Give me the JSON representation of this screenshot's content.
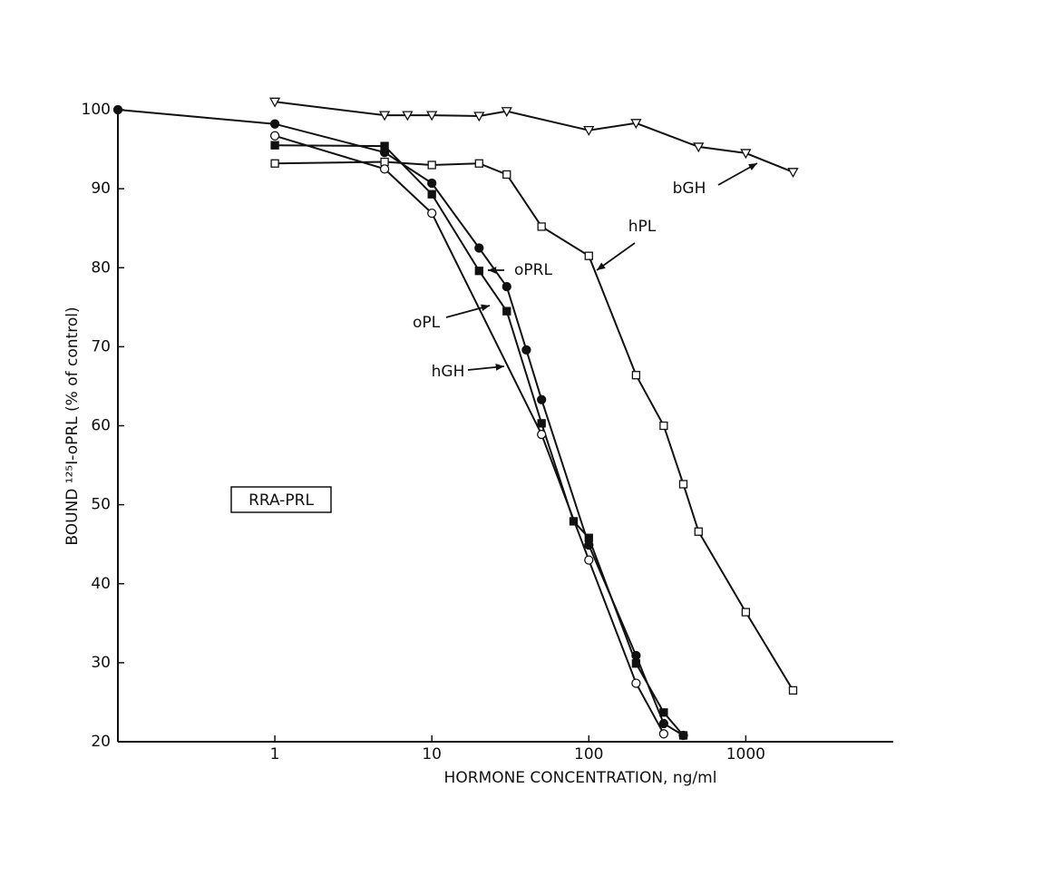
{
  "chart_data": {
    "type": "line",
    "xlabel": "HORMONE CONCENTRATION, ng/ml",
    "ylabel": "BOUND ¹²⁵I-oPRL (% of control)",
    "xscale": "log",
    "xlim": [
      0.1,
      8700
    ],
    "ylim": [
      20,
      100
    ],
    "xticks": [
      1,
      10,
      100,
      1000
    ],
    "yticks": [
      20,
      30,
      40,
      50,
      60,
      70,
      80,
      90,
      100
    ],
    "grid": false,
    "annotation": "RRA-PRL",
    "series": [
      {
        "name": "bGH",
        "color": "#111111",
        "marker": "triangle-down-open",
        "x": [
          1,
          5,
          7,
          10,
          20,
          30,
          100,
          200,
          500,
          1000,
          2000
        ],
        "values": [
          101,
          99.3,
          99.3,
          99.3,
          99.2,
          99.8,
          97.4,
          98.3,
          95.3,
          94.5,
          92.1
        ]
      },
      {
        "name": "hPL",
        "color": "#111111",
        "marker": "square-open",
        "x": [
          1,
          5,
          10,
          20,
          30,
          50,
          100,
          200,
          300,
          400,
          500,
          1000,
          2000
        ],
        "values": [
          93.2,
          93.4,
          93,
          93.2,
          91.8,
          85.2,
          81.5,
          66.4,
          60,
          52.6,
          46.6,
          36.4,
          26.5
        ]
      },
      {
        "name": "oPRL",
        "color": "#111111",
        "marker": "circle-filled",
        "x": [
          0.1,
          1,
          5,
          10,
          20,
          30,
          40,
          50,
          100,
          200,
          300,
          400
        ],
        "values": [
          100,
          98.2,
          94.6,
          90.7,
          82.5,
          77.6,
          69.6,
          63.3,
          44.9,
          30.9,
          22.3,
          20.8
        ]
      },
      {
        "name": "oPL",
        "color": "#111111",
        "marker": "square-filled",
        "x": [
          1,
          5,
          10,
          20,
          30,
          50,
          80,
          100,
          200,
          300,
          400
        ],
        "values": [
          95.5,
          95.4,
          89.3,
          79.6,
          74.5,
          60.3,
          47.9,
          45.8,
          29.9,
          23.7,
          20.8
        ]
      },
      {
        "name": "hGH",
        "color": "#111111",
        "marker": "circle-open",
        "x": [
          1,
          5,
          10,
          50,
          100,
          200,
          300
        ],
        "values": [
          96.7,
          92.5,
          86.9,
          58.9,
          43,
          27.4,
          21
        ]
      }
    ]
  }
}
